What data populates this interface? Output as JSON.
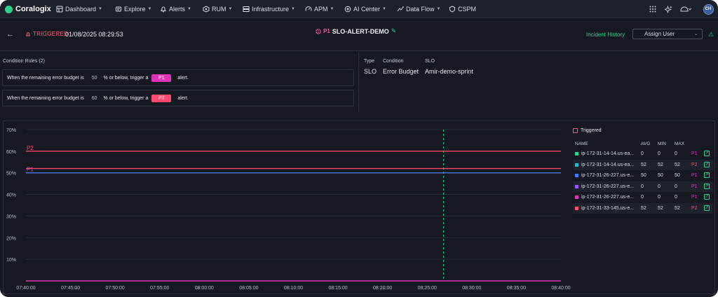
{
  "app": {
    "name": "Coralogix"
  },
  "nav": [
    {
      "label": "Dashboard",
      "icon": "dashboard-icon",
      "caret": true
    },
    {
      "label": "Explore",
      "icon": "explore-icon",
      "caret": true
    },
    {
      "label": "Alerts",
      "icon": "bell-icon",
      "caret": true
    },
    {
      "label": "RUM",
      "icon": "rum-icon",
      "caret": true
    },
    {
      "label": "Infrastructure",
      "icon": "infrastructure-icon",
      "caret": true
    },
    {
      "label": "APM",
      "icon": "gauge-icon",
      "caret": true
    },
    {
      "label": "AI Center",
      "icon": "ai-icon",
      "caret": true
    },
    {
      "label": "Data Flow",
      "icon": "data-flow-icon",
      "caret": true
    },
    {
      "label": "CSPM",
      "icon": "shield-icon",
      "caret": false
    }
  ],
  "user": {
    "initials": "CH"
  },
  "header": {
    "status": "TRIGGERED",
    "date": "01/08/2025 08:29:53",
    "priority": "P1",
    "alert_name": "SLO-ALERT-DEMO",
    "incident_history": "Incident History",
    "assign_user": "Assign User"
  },
  "conditions": {
    "title": "Condition Rules (2)",
    "rules": [
      {
        "prefix": "When the remaining error budget is",
        "value": "50",
        "middle": "% or below, trigger a",
        "priority": "P1",
        "suffix": "alert."
      },
      {
        "prefix": "When the remaining error budget is",
        "value": "60",
        "middle": "% or below, trigger a",
        "priority": "P2",
        "suffix": "alert."
      }
    ]
  },
  "slo_info": {
    "type_label": "Type",
    "type_value": "SLO",
    "condition_label": "Condition",
    "condition_value": "Error Budget",
    "slo_label": "SLO",
    "slo_value": "Amir-demo-sprint"
  },
  "legend": {
    "title": "Triggered",
    "headers": {
      "name": "NAME",
      "avg": "AVG",
      "min": "MIN",
      "max": "MAX"
    },
    "rows": [
      {
        "name": "ip-172-31-14-14.us-ea...",
        "avg": "0",
        "min": "0",
        "max": "0",
        "priority": "P1",
        "color": "#2ad38b"
      },
      {
        "name": "ip-172-31-14-14.us-ea...",
        "avg": "52",
        "min": "52",
        "max": "52",
        "priority": "P2",
        "color": "#27b7c9"
      },
      {
        "name": "ip-172-31-26-227.us-e...",
        "avg": "50",
        "min": "50",
        "max": "50",
        "priority": "P1",
        "color": "#3d7bff"
      },
      {
        "name": "ip-172-31-26-227.us-e...",
        "avg": "0",
        "min": "0",
        "max": "0",
        "priority": "P1",
        "color": "#9a55ff"
      },
      {
        "name": "ip-172-31-26-227.us-e...",
        "avg": "0",
        "min": "0",
        "max": "0",
        "priority": "P1",
        "color": "#e232b8"
      },
      {
        "name": "ip-172-31-33-145.us-e...",
        "avg": "52",
        "min": "52",
        "max": "52",
        "priority": "P2",
        "color": "#ff4a6c"
      }
    ]
  },
  "chart_data": {
    "type": "line",
    "x_ticks": [
      "07:40:00",
      "07:45:00",
      "07:50:00",
      "07:55:00",
      "08:00:00",
      "08:05:00",
      "08:10:00",
      "08:15:00",
      "08:20:00",
      "08:25:00",
      "08:30:00",
      "08:35:00",
      "08:40:00"
    ],
    "y_ticks": [
      "70%",
      "60%",
      "50%",
      "40%",
      "30%",
      "20%",
      "10%"
    ],
    "ylim": [
      0,
      70
    ],
    "threshold_lines": [
      {
        "label": "P2",
        "value": 60,
        "color": "#ff4a6c"
      },
      {
        "label": "P1",
        "value": 50,
        "color": "#e232b8"
      }
    ],
    "series": [
      {
        "value": 52,
        "color": "#ff4a6c"
      },
      {
        "value": 50,
        "color": "#3d7bff"
      },
      {
        "value": 0,
        "color": "#e232b8"
      }
    ],
    "trigger_marker": "08:26:50"
  }
}
